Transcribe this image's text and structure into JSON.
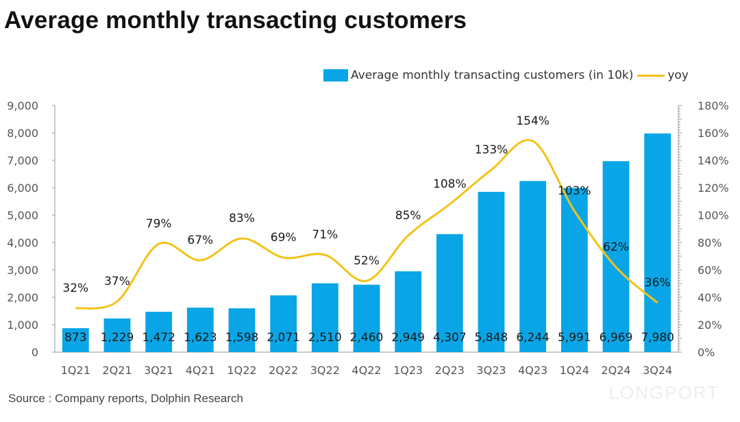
{
  "title": "Average monthly transacting customers",
  "source": "Source : Company reports, Dolphin Research",
  "watermark": "LONGPORT",
  "colors": {
    "bar": "#0aa5e6",
    "line": "#f2c318",
    "axis": "#999999",
    "text": "#111111",
    "tick": "#555555"
  },
  "chart_data": {
    "type": "bar",
    "title": "Average monthly transacting customers",
    "categories": [
      "1Q21",
      "2Q21",
      "3Q21",
      "4Q21",
      "1Q22",
      "2Q22",
      "3Q22",
      "4Q22",
      "1Q23",
      "2Q23",
      "3Q23",
      "4Q23",
      "1Q24",
      "2Q24",
      "3Q24"
    ],
    "series": [
      {
        "name": "Average monthly transacting customers (in 10k)",
        "type": "bar",
        "axis": "left",
        "values": [
          873,
          1229,
          1472,
          1623,
          1598,
          2071,
          2510,
          2460,
          2949,
          4307,
          5848,
          6244,
          5991,
          6969,
          7980
        ],
        "labels": [
          "873",
          "1,229",
          "1,472",
          "1,623",
          "1,598",
          "2,071",
          "2,510",
          "2,460",
          "2,949",
          "4,307",
          "5,848",
          "6,244",
          "5,991",
          "6,969",
          "7,980"
        ]
      },
      {
        "name": "yoy",
        "type": "line",
        "axis": "right",
        "values": [
          32,
          37,
          79,
          67,
          83,
          69,
          71,
          52,
          85,
          108,
          133,
          154,
          103,
          62,
          36
        ],
        "labels": [
          "32%",
          "37%",
          "79%",
          "67%",
          "83%",
          "69%",
          "71%",
          "52%",
          "85%",
          "108%",
          "133%",
          "154%",
          "103%",
          "62%",
          "36%"
        ]
      }
    ],
    "left_axis": {
      "ylim": [
        0,
        9000
      ],
      "ticks": [
        "0",
        "1,000",
        "2,000",
        "3,000",
        "4,000",
        "5,000",
        "6,000",
        "7,000",
        "8,000",
        "9,000"
      ]
    },
    "right_axis": {
      "ylim": [
        0,
        180
      ],
      "ticks": [
        "0%",
        "20%",
        "40%",
        "60%",
        "80%",
        "100%",
        "120%",
        "140%",
        "160%",
        "180%"
      ]
    },
    "legend": {
      "position": "top-right",
      "entries": [
        "Average monthly transacting customers (in 10k)",
        "yoy"
      ]
    },
    "grid": false,
    "xlabel": "",
    "ylabel": ""
  }
}
